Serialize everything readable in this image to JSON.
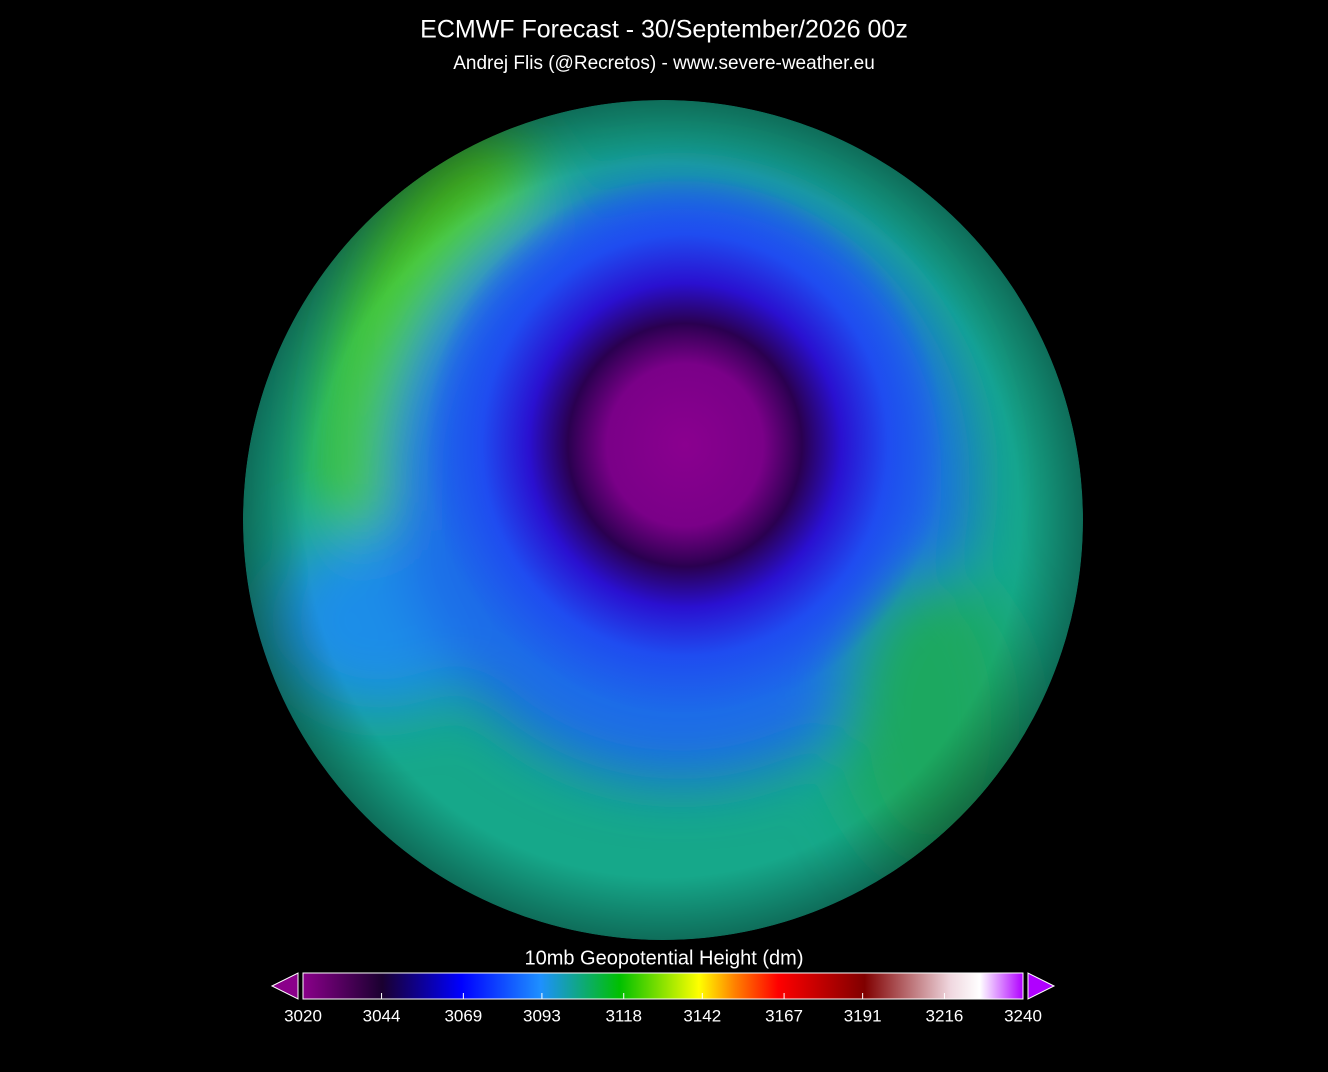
{
  "header": {
    "title": "ECMWF Forecast - 30/September/2026 00z",
    "subtitle": "Andrej Flis (@Recretos) - www.severe-weather.eu"
  },
  "colorbar": {
    "label": "10mb Geopotential Height (dm)",
    "range": [
      3020,
      3240
    ],
    "ticks": [
      3020,
      3044,
      3069,
      3093,
      3118,
      3142,
      3167,
      3191,
      3216,
      3240
    ]
  }
}
